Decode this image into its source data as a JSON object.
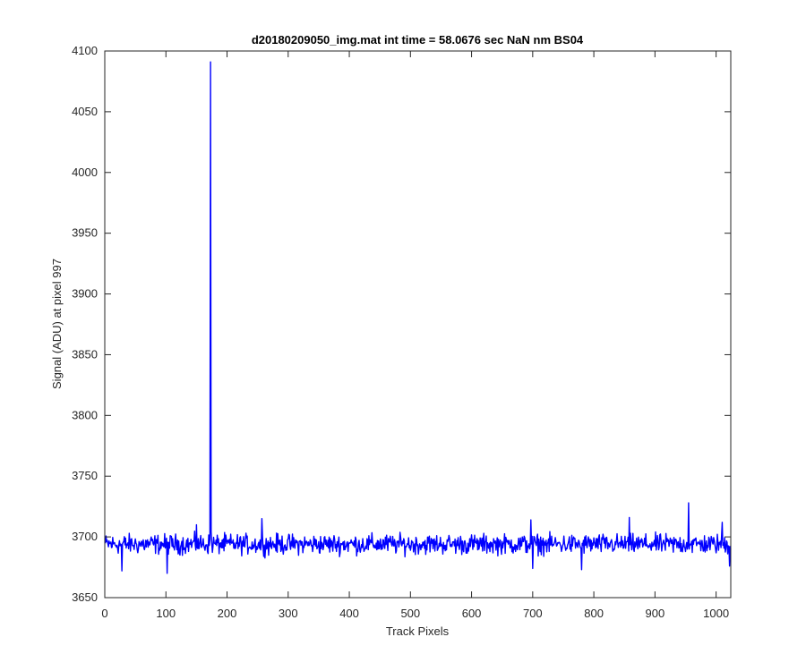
{
  "chart_data": {
    "type": "line",
    "title": "d20180209050_img.mat int time = 58.0676 sec  NaN nm BS04",
    "xlabel": "Track Pixels",
    "ylabel": "Signal (ADU) at pixel 997",
    "xlim": [
      0,
      1024
    ],
    "ylim": [
      3650,
      4100
    ],
    "xticks": [
      0,
      100,
      200,
      300,
      400,
      500,
      600,
      700,
      800,
      900,
      1000
    ],
    "yticks": [
      3650,
      3700,
      3750,
      3800,
      3850,
      3900,
      3950,
      4000,
      4050,
      4100
    ],
    "grid": false,
    "series": [
      {
        "color": "#0000ff",
        "baseline": 3694,
        "noise_amplitude": 12,
        "spike": {
          "x": 173,
          "y": 4091
        },
        "notable_points": [
          {
            "x": 150,
            "y": 3710
          },
          {
            "x": 257,
            "y": 3715
          },
          {
            "x": 697,
            "y": 3714
          },
          {
            "x": 858,
            "y": 3716
          },
          {
            "x": 955,
            "y": 3728
          },
          {
            "x": 1010,
            "y": 3712
          },
          {
            "x": 28,
            "y": 3672
          },
          {
            "x": 102,
            "y": 3670
          },
          {
            "x": 700,
            "y": 3674
          },
          {
            "x": 780,
            "y": 3673
          },
          {
            "x": 1022,
            "y": 3676
          }
        ],
        "n_points": 1024
      }
    ]
  }
}
